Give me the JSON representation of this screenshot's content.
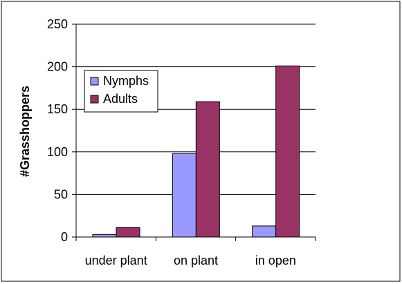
{
  "chart_data": {
    "type": "bar",
    "title": "",
    "xlabel": "",
    "ylabel": "#Grasshoppers",
    "categories": [
      "under plant",
      "on plant",
      "in open"
    ],
    "series": [
      {
        "name": "Nymphs",
        "values": [
          3,
          98,
          13
        ],
        "color": "#9999ff"
      },
      {
        "name": "Adults",
        "values": [
          11,
          159,
          201
        ],
        "color": "#993366"
      }
    ],
    "ylim": [
      0,
      250
    ],
    "yticks": [
      0,
      50,
      100,
      150,
      200,
      250
    ],
    "grid": "horizontal",
    "legend": "inside-top-left"
  }
}
